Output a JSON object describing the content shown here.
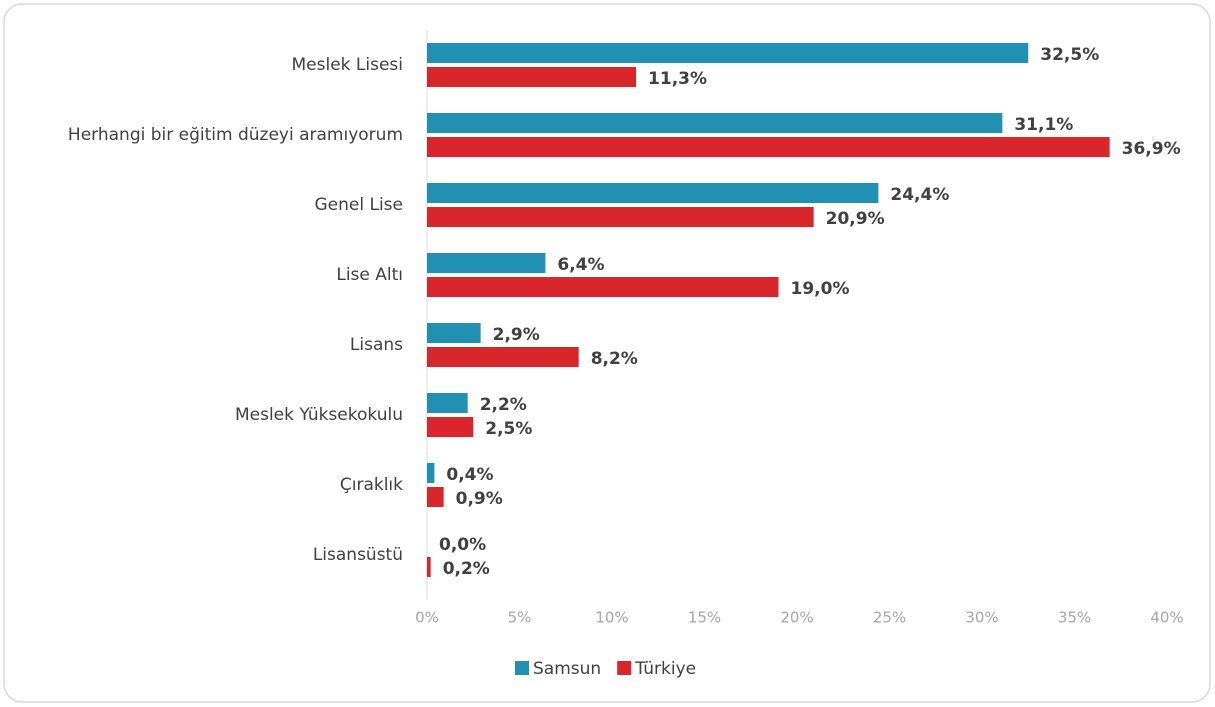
{
  "chart_data": {
    "type": "hbar",
    "categories": [
      "Meslek Lisesi",
      "Herhangi bir eğitim düzeyi aramıyorum",
      "Genel Lise",
      "Lise Altı",
      "Lisans",
      "Meslek Yüksekokulu",
      "Çıraklık",
      "Lisansüstü"
    ],
    "series": [
      {
        "name": "Samsun",
        "color": "#2290b3",
        "values": [
          32.5,
          31.1,
          24.4,
          6.4,
          2.9,
          2.2,
          0.4,
          0.0
        ],
        "value_labels": [
          "32,5%",
          "31,1%",
          "24,4%",
          "6,4%",
          "2,9%",
          "2,2%",
          "0,4%",
          "0,0%"
        ]
      },
      {
        "name": "Türkiye",
        "color": "#d8262c",
        "values": [
          11.3,
          36.9,
          20.9,
          19.0,
          8.2,
          2.5,
          0.9,
          0.2
        ],
        "value_labels": [
          "11,3%",
          "36,9%",
          "20,9%",
          "19,0%",
          "8,2%",
          "2,5%",
          "0,9%",
          "0,2%"
        ]
      }
    ],
    "xlim": [
      0,
      40
    ],
    "xticks": [
      {
        "value": 0,
        "label": "0%"
      },
      {
        "value": 5,
        "label": "5%"
      },
      {
        "value": 10,
        "label": "10%"
      },
      {
        "value": 15,
        "label": "15%"
      },
      {
        "value": 20,
        "label": "20%"
      },
      {
        "value": 25,
        "label": "25%"
      },
      {
        "value": 30,
        "label": "30%"
      },
      {
        "value": 35,
        "label": "35%"
      },
      {
        "value": 40,
        "label": "40%"
      }
    ],
    "grid": false,
    "legend": "bottom"
  }
}
